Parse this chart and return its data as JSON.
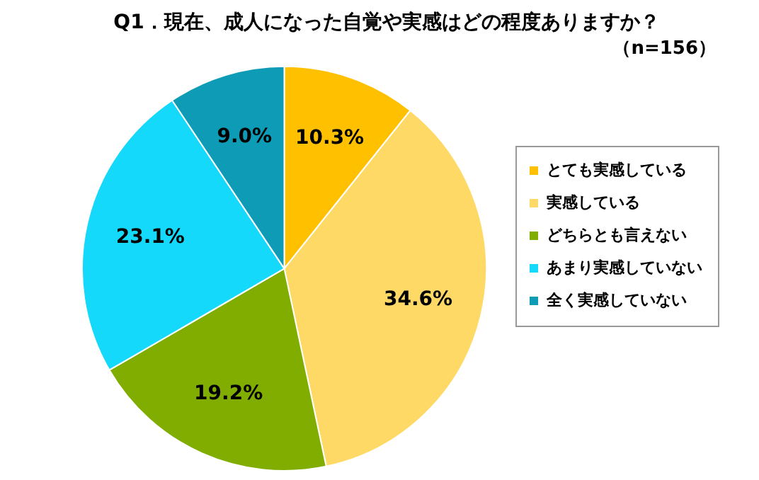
{
  "chart_data": {
    "type": "pie",
    "title": "Q1．現在、成人になった自覚や実感はどの程度ありますか？",
    "subtitle": "（n=156）",
    "categories": [
      "とても実感している",
      "実感している",
      "どちらとも言えない",
      "あまり実感していない",
      "全く実感していない"
    ],
    "values": [
      10.3,
      34.6,
      19.2,
      23.1,
      9.0
    ],
    "value_labels": [
      "10.3%",
      "34.6%",
      "19.2%",
      "23.1%",
      "9.0%"
    ],
    "colors": [
      "#ffc000",
      "#ffd966",
      "#80ad00",
      "#14d9fb",
      "#0d9bb5"
    ],
    "legend": "right"
  }
}
